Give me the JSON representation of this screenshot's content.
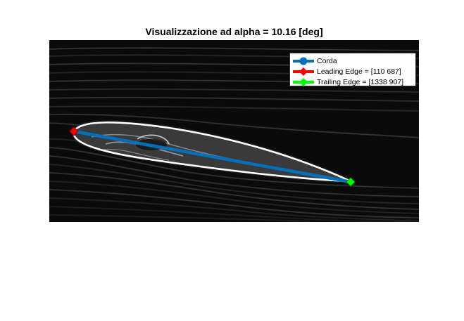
{
  "figure": {
    "title": "Visualizzazione ad alpha = 10.16 [deg]"
  },
  "legend": {
    "placement": "top-right",
    "entries": [
      {
        "label": "Corda",
        "color": "#0072BD",
        "marker": "circle"
      },
      {
        "label": "Leading Edge = [110 687]",
        "color": "#FF0000",
        "marker": "diamond"
      },
      {
        "label": "Trailing Edge = [1338 907]",
        "color": "#00FF00",
        "marker": "diamond"
      }
    ]
  },
  "image": {
    "content": "grayscale flow-visualization photo of an airfoil with streaklines",
    "colors": {
      "background": "#000000",
      "airfoil_outline": "#ffffff",
      "chord_line": "#0072BD",
      "leading_edge": "#FF0000",
      "trailing_edge": "#00FF00"
    }
  }
}
